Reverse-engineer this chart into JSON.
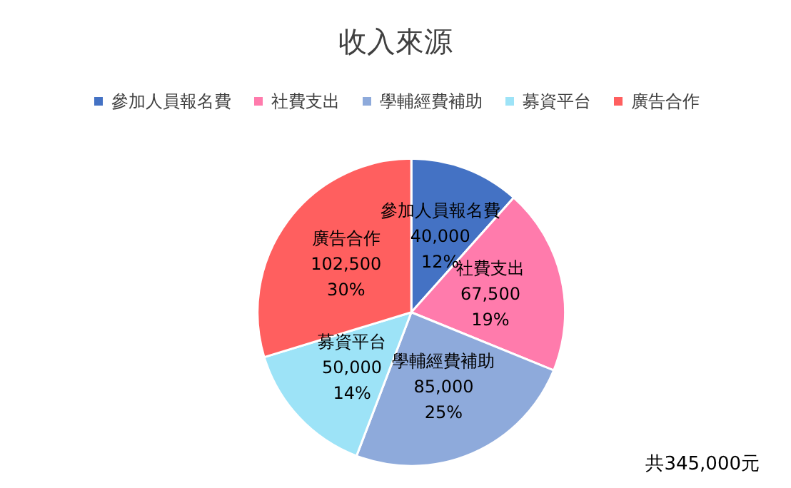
{
  "chart_data": {
    "type": "pie",
    "title": "收入來源",
    "categories": [
      "參加人員報名費",
      "社費支出",
      "學輔經費補助",
      "募資平台",
      "廣告合作"
    ],
    "values": [
      40000,
      67500,
      85000,
      50000,
      102500
    ],
    "value_labels": [
      "40,000\n12%",
      "67,500\n19%",
      "85,000\n25%",
      "50,000\n14%",
      "102,500\n30%"
    ],
    "colors": [
      "#4472c4",
      "#ff7bac",
      "#8eaadb",
      "#9de3f7",
      "#ff5f5f"
    ],
    "legend": "top",
    "annotations": [
      "共345,000元"
    ]
  }
}
